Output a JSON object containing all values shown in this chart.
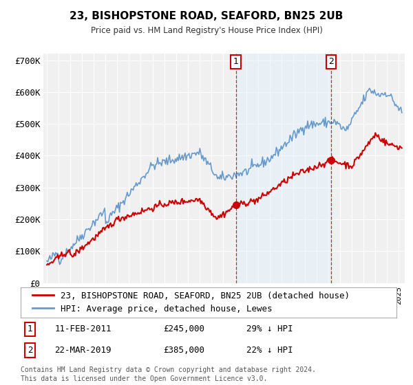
{
  "title": "23, BISHOPSTONE ROAD, SEAFORD, BN25 2UB",
  "subtitle": "Price paid vs. HM Land Registry's House Price Index (HPI)",
  "xlim": [
    1994.7,
    2025.5
  ],
  "ylim": [
    0,
    720000
  ],
  "yticks": [
    0,
    100000,
    200000,
    300000,
    400000,
    500000,
    600000,
    700000
  ],
  "ytick_labels": [
    "£0",
    "£100K",
    "£200K",
    "£300K",
    "£400K",
    "£500K",
    "£600K",
    "£700K"
  ],
  "hpi_color": "#6699cc",
  "property_color": "#cc0000",
  "point1_x": 2011.12,
  "point1_y": 245000,
  "point2_x": 2019.22,
  "point2_y": 385000,
  "vline1_x": 2011.12,
  "vline2_x": 2019.22,
  "shade_color": "#ddeeff",
  "legend_label_property": "23, BISHOPSTONE ROAD, SEAFORD, BN25 2UB (detached house)",
  "legend_label_hpi": "HPI: Average price, detached house, Lewes",
  "footer1": "Contains HM Land Registry data © Crown copyright and database right 2024.",
  "footer2": "This data is licensed under the Open Government Licence v3.0.",
  "table_row1": [
    "1",
    "11-FEB-2011",
    "£245,000",
    "29% ↓ HPI"
  ],
  "table_row2": [
    "2",
    "22-MAR-2019",
    "£385,000",
    "22% ↓ HPI"
  ],
  "background_color": "#f0f0f0"
}
